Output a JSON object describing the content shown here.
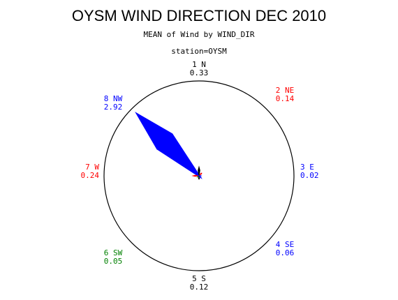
{
  "chart_data": {
    "type": "wind-rose",
    "title": "OYSM WIND DIRECTION DEC 2010",
    "subtitle": "MEAN of Wind by WIND_DIR",
    "station_label": "station=OYSM",
    "max_value": 2.92,
    "directions": [
      {
        "id": "dir-n",
        "label": "1 N",
        "value_text": "0.33",
        "value": 0.33,
        "angle_deg": 0,
        "color": "#000000"
      },
      {
        "id": "dir-ne",
        "label": "2 NE",
        "value_text": "0.14",
        "value": 0.14,
        "angle_deg": 45,
        "color": "#ff0000"
      },
      {
        "id": "dir-e",
        "label": "3 E",
        "value_text": "0.02",
        "value": 0.02,
        "angle_deg": 90,
        "color": "#0000ff"
      },
      {
        "id": "dir-se",
        "label": "4 SE",
        "value_text": "0.06",
        "value": 0.06,
        "angle_deg": 135,
        "color": "#0000ff"
      },
      {
        "id": "dir-s",
        "label": "5 S",
        "value_text": "0.12",
        "value": 0.12,
        "angle_deg": 180,
        "color": "#000000"
      },
      {
        "id": "dir-sw",
        "label": "6 SW",
        "value_text": "0.05",
        "value": 0.05,
        "angle_deg": 225,
        "color": "#008000"
      },
      {
        "id": "dir-w",
        "label": "7 W",
        "value_text": "0.24",
        "value": 0.24,
        "angle_deg": 270,
        "color": "#ff0000"
      },
      {
        "id": "dir-nw",
        "label": "8 NW",
        "value_text": "2.92",
        "value": 2.92,
        "angle_deg": 315,
        "color": "#0000ff"
      }
    ]
  }
}
